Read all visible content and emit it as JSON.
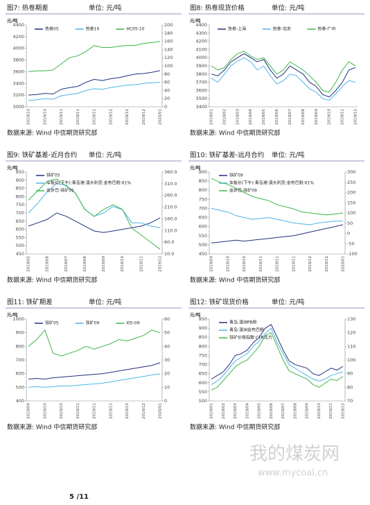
{
  "chart_data": [
    {
      "type": "line",
      "title": "图7: 热卷期差",
      "unit": "单位: 元/吨",
      "ylabel": "元/吨",
      "source": "数据来源: Wind 中信期货研究部",
      "legend": "top-row",
      "categories": [
        "2019/10",
        null,
        "2019/10",
        null,
        "2019/11",
        null,
        "2019/11",
        null,
        "2019/11",
        null,
        "2019/12",
        null,
        "2019/12",
        null,
        "2019/12",
        null,
        "2020/01"
      ],
      "ylim": [
        3000,
        4400
      ],
      "yticks": [
        3000,
        3200,
        3400,
        3600,
        3800,
        4000,
        4200,
        4400
      ],
      "y2lim": [
        0,
        200
      ],
      "y2ticks": [
        0,
        20,
        40,
        60,
        80,
        100,
        120,
        140,
        160,
        180,
        200
      ],
      "series": [
        {
          "name": "热卷05",
          "color": "#1f2f7a",
          "values": [
            3200,
            3210,
            3230,
            3220,
            3300,
            3330,
            3350,
            3420,
            3470,
            3450,
            3480,
            3500,
            3530,
            3560,
            3570,
            3590,
            3620
          ]
        },
        {
          "name": "热卷10",
          "color": "#4fb3e8",
          "values": [
            3110,
            3120,
            3140,
            3130,
            3190,
            3210,
            3230,
            3280,
            3310,
            3300,
            3330,
            3350,
            3370,
            3380,
            3400,
            3410,
            3420
          ]
        },
        {
          "name": "HC05-10",
          "color": "#3cb54a",
          "axis": "y2",
          "values": [
            86,
            88,
            88,
            90,
            105,
            120,
            125,
            135,
            150,
            145,
            145,
            148,
            150,
            150,
            155,
            157,
            160
          ]
        }
      ]
    },
    {
      "type": "line",
      "title": "图8: 热卷现货价格",
      "unit": "单位: 元/吨",
      "ylabel": "元/吨",
      "source": "数据来源: Wind 中信期货研究部",
      "legend": "top-row",
      "categories": [
        "2019/01",
        null,
        "2019/02",
        null,
        "2019/03",
        null,
        "2019/04",
        null,
        "2019/05",
        null,
        "2019/06",
        null,
        "2019/07",
        null,
        "2019/08",
        null,
        "2019/09",
        null,
        "2019/10",
        null,
        "2019/11",
        null,
        "2019/12"
      ],
      "ylim": [
        3400,
        4400
      ],
      "yticks": [
        3400,
        3500,
        3600,
        3700,
        3800,
        3900,
        4000,
        4100,
        4200,
        4300,
        4400
      ],
      "series": [
        {
          "name": "热卷-上海",
          "color": "#1f2f7a",
          "values": [
            3800,
            3780,
            3850,
            3950,
            4000,
            4050,
            4000,
            3950,
            3980,
            3850,
            3750,
            3800,
            3900,
            3850,
            3800,
            3700,
            3650,
            3550,
            3520,
            3600,
            3700,
            3850,
            3880
          ]
        },
        {
          "name": "热卷-北京",
          "color": "#4fb3e8",
          "values": [
            3750,
            3700,
            3800,
            3900,
            3960,
            4000,
            3950,
            3850,
            3900,
            3780,
            3680,
            3720,
            3800,
            3780,
            3700,
            3620,
            3580,
            3500,
            3480,
            3560,
            3650,
            3720,
            3700
          ]
        },
        {
          "name": "热卷-广州",
          "color": "#3cb54a",
          "values": [
            3900,
            3850,
            3880,
            3980,
            4050,
            4080,
            4020,
            3980,
            4000,
            3900,
            3800,
            3850,
            3950,
            3900,
            3850,
            3780,
            3700,
            3600,
            3580,
            3700,
            3850,
            3950,
            3900
          ]
        }
      ]
    },
    {
      "type": "line",
      "title": "图9: 铁矿基差-近月合约",
      "unit": "单位: 元/吨",
      "ylabel": "元/吨",
      "source": "数据来源: Wind 中信期货研究部",
      "legend": "top-column",
      "categories": [
        "2019/05",
        null,
        "2019/06",
        null,
        "2019/07",
        null,
        "2019/08",
        null,
        "2019/09",
        null,
        "2019/10",
        null,
        "2019/11",
        null,
        "2019/12"
      ],
      "ylim": [
        450,
        950
      ],
      "yticks": [
        450,
        500,
        550,
        600,
        650,
        700,
        750,
        800,
        850,
        900,
        950
      ],
      "y2lim": [
        10,
        360
      ],
      "y2ticks": [
        {
          "value": 10,
          "label": "10.0"
        },
        {
          "value": 60,
          "label": "60.0"
        },
        {
          "value": 110,
          "label": "110.0"
        },
        {
          "value": 160,
          "label": "160.0"
        },
        {
          "value": 210,
          "label": "210.0"
        },
        {
          "value": 260,
          "label": "260.0"
        },
        {
          "value": 310,
          "label": "310.0"
        },
        {
          "value": 360,
          "label": "360.0"
        }
      ],
      "series": [
        {
          "name": "铁矿05",
          "color": "#1f2f7a",
          "values": [
            620,
            640,
            660,
            700,
            680,
            650,
            620,
            590,
            580,
            590,
            600,
            610,
            620,
            640,
            670
          ]
        },
        {
          "name": "车板价(下午):青岛港:澳大利亚:金布巴粉:61%",
          "color": "#4fb3e8",
          "values": [
            700,
            760,
            830,
            880,
            870,
            820,
            720,
            680,
            700,
            740,
            720,
            640,
            640,
            620,
            610
          ]
        },
        {
          "name": "金步巴-铁矿05",
          "color": "#3cb54a",
          "axis": "y2",
          "values": [
            240,
            280,
            320,
            330,
            300,
            270,
            200,
            170,
            200,
            220,
            200,
            120,
            90,
            60,
            30
          ]
        }
      ]
    },
    {
      "type": "line",
      "title": "图10: 铁矿基差-远月合约",
      "unit": "单位: 元/吨",
      "ylabel": "元/吨",
      "source": "数据来源: Wind 中信期货研究部",
      "legend": "top-column",
      "categories": [
        "2019/09",
        null,
        "2019/10",
        null,
        "2019/10",
        null,
        "2019/11",
        null,
        "2019/11",
        null,
        "2019/11",
        null,
        "2019/12",
        null,
        "2019/12",
        null,
        "2020/01"
      ],
      "ylim": [
        450,
        900
      ],
      "yticks": [
        450,
        500,
        550,
        600,
        650,
        700,
        750,
        800,
        850,
        900
      ],
      "y2lim": [
        -100,
        300
      ],
      "y2ticks": [
        -100,
        -50,
        0,
        50,
        100,
        150,
        200,
        250,
        300
      ],
      "series": [
        {
          "name": "铁矿09",
          "color": "#1f2f7a",
          "values": [
            510,
            515,
            520,
            525,
            520,
            525,
            530,
            535,
            540,
            545,
            550,
            560,
            570,
            580,
            590,
            600,
            610
          ]
        },
        {
          "name": "车板价(下午):青岛港:澳大利亚:金布巴粉:61%",
          "color": "#4fb3e8",
          "values": [
            700,
            690,
            680,
            660,
            650,
            640,
            645,
            650,
            640,
            630,
            620,
            615,
            610,
            620,
            625,
            630,
            630
          ]
        },
        {
          "name": "金步巴-铁矿09",
          "color": "#3cb54a",
          "axis": "y2",
          "values": [
            270,
            250,
            240,
            220,
            200,
            180,
            170,
            160,
            140,
            130,
            120,
            105,
            100,
            95,
            90,
            95,
            100
          ]
        }
      ]
    },
    {
      "type": "line",
      "title": "图11: 铁矿期差",
      "unit": "单位: 元/吨",
      "ylabel": "元/吨",
      "source": "数据来源: Wind 中信期货研究部",
      "legend": "top-row",
      "categories": [
        "2019/09",
        null,
        "2019/10",
        null,
        "2019/10",
        null,
        "2019/11",
        null,
        "2019/11",
        null,
        "2019/11",
        null,
        "2019/12",
        null,
        "2019/12",
        null,
        "2020/01"
      ],
      "ylim": [
        400,
        1000
      ],
      "yticks": [
        400,
        500,
        600,
        700,
        800,
        900,
        1000
      ],
      "y2lim": [
        0,
        60
      ],
      "y2ticks": [
        0,
        10,
        20,
        30,
        40,
        50,
        60
      ],
      "series": [
        {
          "name": "铁矿05",
          "color": "#1f2f7a",
          "values": [
            560,
            565,
            560,
            570,
            575,
            580,
            585,
            590,
            595,
            600,
            610,
            620,
            630,
            640,
            650,
            660,
            680
          ]
        },
        {
          "name": "铁矿09",
          "color": "#4fb3e8",
          "values": [
            500,
            505,
            500,
            505,
            510,
            510,
            515,
            520,
            525,
            530,
            540,
            550,
            560,
            570,
            580,
            590,
            600
          ]
        },
        {
          "name": "I05-09",
          "color": "#3cb54a",
          "axis": "y2",
          "values": [
            40,
            45,
            52,
            35,
            33,
            35,
            37,
            40,
            38,
            40,
            42,
            45,
            44,
            46,
            48,
            52,
            50
          ]
        }
      ]
    },
    {
      "type": "line",
      "title": "图12: 铁矿现货价格",
      "unit": "单位: 元/吨",
      "ylabel": "元/吨",
      "source": "数据来源: Wind 中信期货研究部",
      "legend": "top-column",
      "categories": [
        "2019/01",
        null,
        "2019/02",
        null,
        "2019/03",
        null,
        "2019/04",
        null,
        "2019/05",
        null,
        "2019/06",
        null,
        "2019/07",
        null,
        "2019/08",
        null,
        "2019/09",
        null,
        "2019/10",
        null,
        "2019/11",
        null,
        "2019/12"
      ],
      "ylim": [
        500,
        950
      ],
      "yticks": [
        500,
        550,
        600,
        650,
        700,
        750,
        800,
        850,
        900,
        950
      ],
      "y2lim": [
        70,
        130
      ],
      "y2ticks": [
        70,
        80,
        90,
        100,
        110,
        120,
        130
      ],
      "series": [
        {
          "name": "青岛:澳洲PB粉",
          "color": "#1f2f7a",
          "values": [
            620,
            640,
            660,
            700,
            750,
            760,
            780,
            820,
            850,
            900,
            920,
            850,
            780,
            720,
            700,
            690,
            680,
            650,
            640,
            660,
            680,
            670,
            690
          ]
        },
        {
          "name": "青岛:澳洲金布巴粉",
          "color": "#4fb3e8",
          "values": [
            590,
            610,
            640,
            680,
            720,
            740,
            760,
            800,
            830,
            870,
            900,
            820,
            760,
            700,
            680,
            660,
            640,
            620,
            610,
            620,
            640,
            650,
            660
          ]
        },
        {
          "name": "铁矿价格指数:CFR北方",
          "color": "#3cb54a",
          "axis": "y2",
          "values": [
            78,
            80,
            85,
            90,
            95,
            98,
            100,
            105,
            110,
            118,
            120,
            110,
            100,
            92,
            90,
            88,
            86,
            82,
            80,
            83,
            86,
            85,
            88
          ]
        }
      ]
    }
  ],
  "footer": {
    "page": "5 /11",
    "watermark": "我的煤炭网",
    "watermark_url": "www.mycoal.cn"
  }
}
